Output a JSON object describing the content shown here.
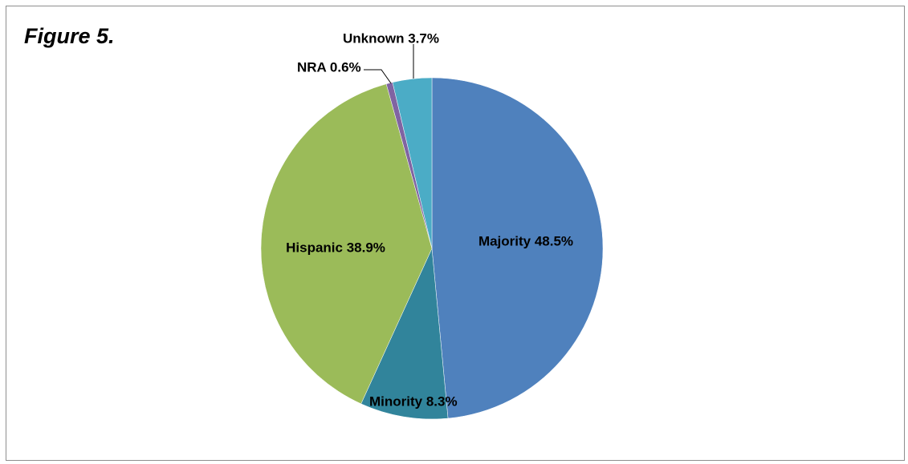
{
  "figure_title": "Figure 5.",
  "chart_data": {
    "type": "pie",
    "title": "",
    "start": "12 o'clock, clockwise",
    "slices": [
      {
        "name": "Majority",
        "value": 48.5,
        "label": "Majority 48.5%",
        "color": "#4f81bd"
      },
      {
        "name": "Minority",
        "value": 8.3,
        "label": "Minority  8.3%",
        "color": "#31849b"
      },
      {
        "name": "Hispanic",
        "value": 38.9,
        "label": "Hispanic 38.9%",
        "color": "#9bbb59"
      },
      {
        "name": "NRA",
        "value": 0.6,
        "label": "NRA 0.6%",
        "color": "#8064a2"
      },
      {
        "name": "Unknown",
        "value": 3.7,
        "label": "Unknown 3.7%",
        "color": "#4bacc6"
      }
    ],
    "legend": "none",
    "labels_shown": "category name and percentage"
  }
}
